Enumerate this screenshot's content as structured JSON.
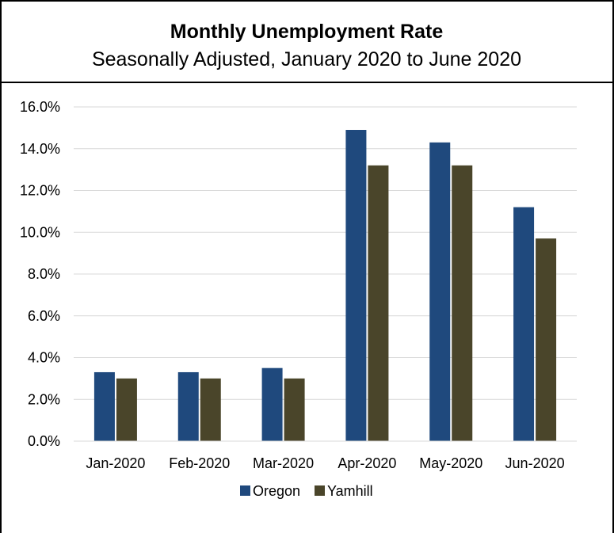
{
  "chart_data": {
    "type": "bar",
    "title": "Monthly Unemployment Rate",
    "subtitle": "Seasonally Adjusted, January 2020 to June 2020",
    "categories": [
      "Jan-2020",
      "Feb-2020",
      "Mar-2020",
      "Apr-2020",
      "May-2020",
      "Jun-2020"
    ],
    "series": [
      {
        "name": "Oregon",
        "color": "#1F497D",
        "values": [
          3.3,
          3.3,
          3.5,
          14.9,
          14.3,
          11.2
        ]
      },
      {
        "name": "Yamhill",
        "color": "#4A452A",
        "values": [
          3.0,
          3.0,
          3.0,
          13.2,
          13.2,
          9.7
        ]
      }
    ],
    "ylim": [
      0,
      16
    ],
    "yticks": [
      0,
      2,
      4,
      6,
      8,
      10,
      12,
      14,
      16
    ],
    "ytick_labels": [
      "0.0%",
      "2.0%",
      "4.0%",
      "6.0%",
      "8.0%",
      "10.0%",
      "12.0%",
      "14.0%",
      "16.0%"
    ],
    "xlabel": "",
    "ylabel": "",
    "grid": true,
    "legend_position": "bottom"
  }
}
